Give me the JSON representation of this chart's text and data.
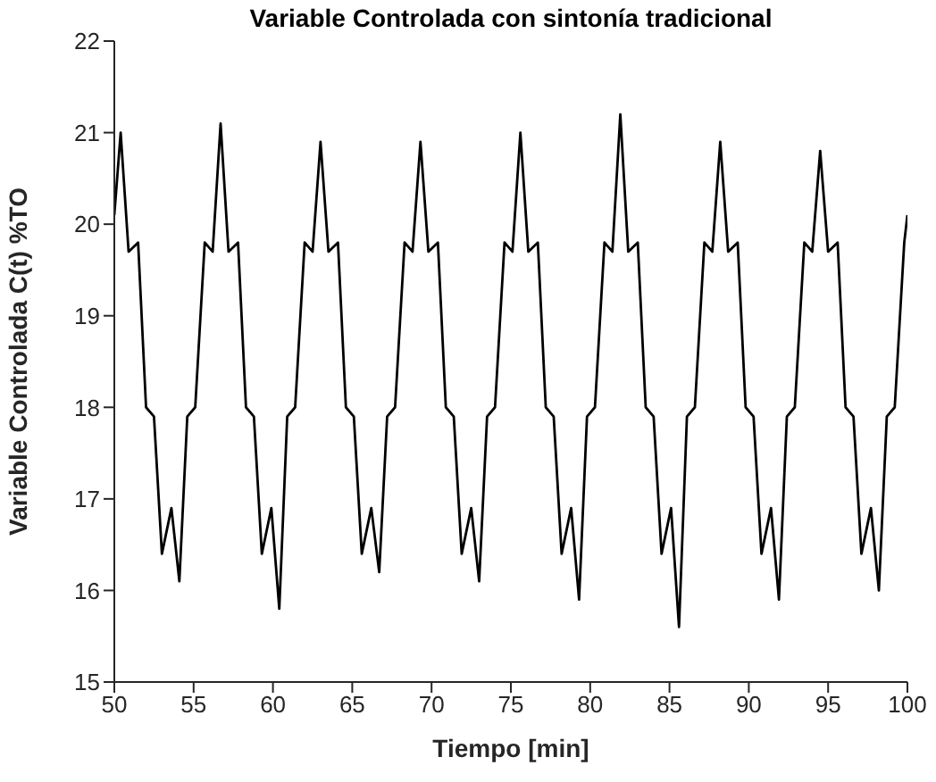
{
  "chart_data": {
    "type": "line",
    "title": "Variable Controlada con sintonía tradicional",
    "xlabel": "Tiempo [min]",
    "ylabel": "Variable Controlada C(t) %TO",
    "xlim": [
      50,
      100
    ],
    "xticks": [
      50,
      55,
      60,
      65,
      70,
      75,
      80,
      85,
      90,
      95,
      100
    ],
    "ylim": [
      15,
      22
    ],
    "yticks": [
      15,
      16,
      17,
      18,
      19,
      20,
      21,
      22
    ],
    "marker": "none",
    "line_style": "solid",
    "series": [
      {
        "color": "#000000",
        "x": [
          50.0,
          50.4,
          50.9,
          51.5,
          52.0,
          52.5,
          53.0,
          53.6,
          54.1,
          54.6,
          55.1,
          55.7,
          56.2,
          56.7,
          57.2,
          57.8,
          58.3,
          58.8,
          59.3,
          59.9,
          60.4,
          60.9,
          61.4,
          62.0,
          62.5,
          63.0,
          63.5,
          64.1,
          64.6,
          65.1,
          65.6,
          66.2,
          66.7,
          67.2,
          67.7,
          68.3,
          68.8,
          69.3,
          69.8,
          70.4,
          70.9,
          71.4,
          71.9,
          72.5,
          73.0,
          73.5,
          74.0,
          74.6,
          75.1,
          75.6,
          76.1,
          76.7,
          77.2,
          77.7,
          78.2,
          78.8,
          79.3,
          79.8,
          80.3,
          80.9,
          81.4,
          81.9,
          82.4,
          83.0,
          83.5,
          84.0,
          84.5,
          85.1,
          85.6,
          86.1,
          86.6,
          87.2,
          87.7,
          88.2,
          88.7,
          89.3,
          89.8,
          90.3,
          90.8,
          91.4,
          91.9,
          92.4,
          92.9,
          93.5,
          94.0,
          94.5,
          95.0,
          95.6,
          96.1,
          96.6,
          97.1,
          97.7,
          98.2,
          98.7,
          99.2,
          99.8,
          100.0
        ],
        "values": [
          20.1,
          21.0,
          19.7,
          19.8,
          18.0,
          17.9,
          16.4,
          16.9,
          16.1,
          17.9,
          18.0,
          19.8,
          19.7,
          21.1,
          19.7,
          19.8,
          18.0,
          17.9,
          16.4,
          16.9,
          15.8,
          17.9,
          18.0,
          19.8,
          19.7,
          20.9,
          19.7,
          19.8,
          18.0,
          17.9,
          16.4,
          16.9,
          16.2,
          17.9,
          18.0,
          19.8,
          19.7,
          20.9,
          19.7,
          19.8,
          18.0,
          17.9,
          16.4,
          16.9,
          16.1,
          17.9,
          18.0,
          19.8,
          19.7,
          21.0,
          19.7,
          19.8,
          18.0,
          17.9,
          16.4,
          16.9,
          15.9,
          17.9,
          18.0,
          19.8,
          19.7,
          21.2,
          19.7,
          19.8,
          18.0,
          17.9,
          16.4,
          16.9,
          15.6,
          17.9,
          18.0,
          19.8,
          19.7,
          20.9,
          19.7,
          19.8,
          18.0,
          17.9,
          16.4,
          16.9,
          15.9,
          17.9,
          18.0,
          19.8,
          19.7,
          20.8,
          19.7,
          19.8,
          18.0,
          17.9,
          16.4,
          16.9,
          16.0,
          17.9,
          18.0,
          19.8,
          20.1
        ]
      }
    ]
  }
}
